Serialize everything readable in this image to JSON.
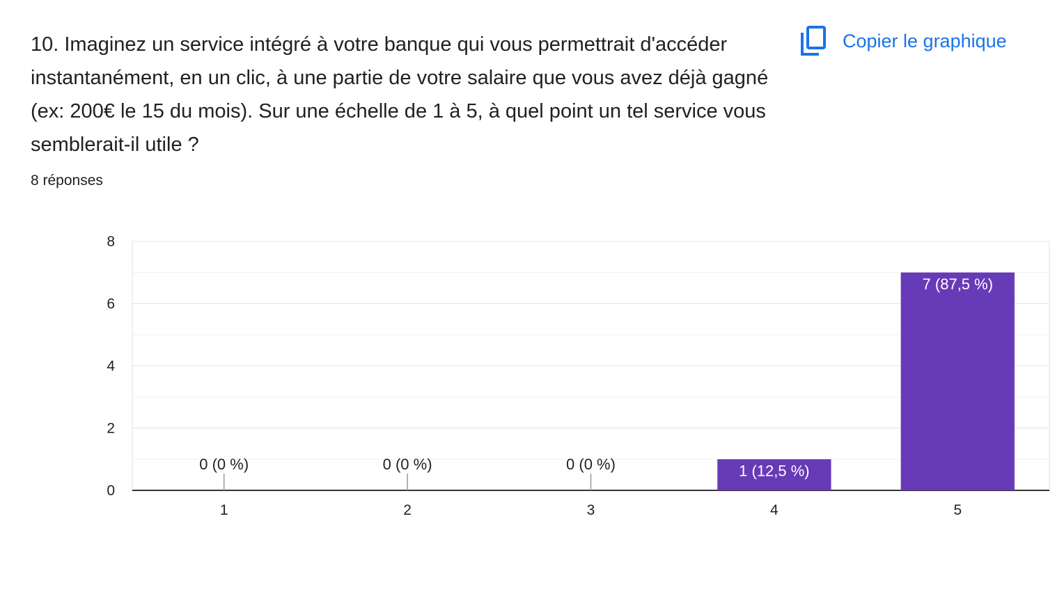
{
  "question": {
    "title": "10. Imaginez un service intégré à votre banque qui vous permettrait d'accéder instantanément, en un clic, à une partie de votre salaire que vous avez déjà gagné (ex: 200€ le 15 du mois). Sur une échelle de 1 à 5, à quel point un tel service vous semblerait-il utile ?",
    "responses": "8 réponses"
  },
  "toolbar": {
    "copy_label": "Copier le graphique",
    "copy_icon": "copy-icon",
    "accent_color": "#1a73e8"
  },
  "chart_data": {
    "type": "bar",
    "categories": [
      "1",
      "2",
      "3",
      "4",
      "5"
    ],
    "values": [
      0,
      0,
      0,
      1,
      7
    ],
    "data_labels": [
      "0 (0 %)",
      "0 (0 %)",
      "0 (0 %)",
      "1 (12,5 %)",
      "7 (87,5 %)"
    ],
    "ylim": [
      0,
      8
    ],
    "yticks": [
      0,
      2,
      4,
      6,
      8
    ],
    "minor_gridlines": true,
    "bar_color": "#673ab7",
    "title": "",
    "xlabel": "",
    "ylabel": ""
  }
}
